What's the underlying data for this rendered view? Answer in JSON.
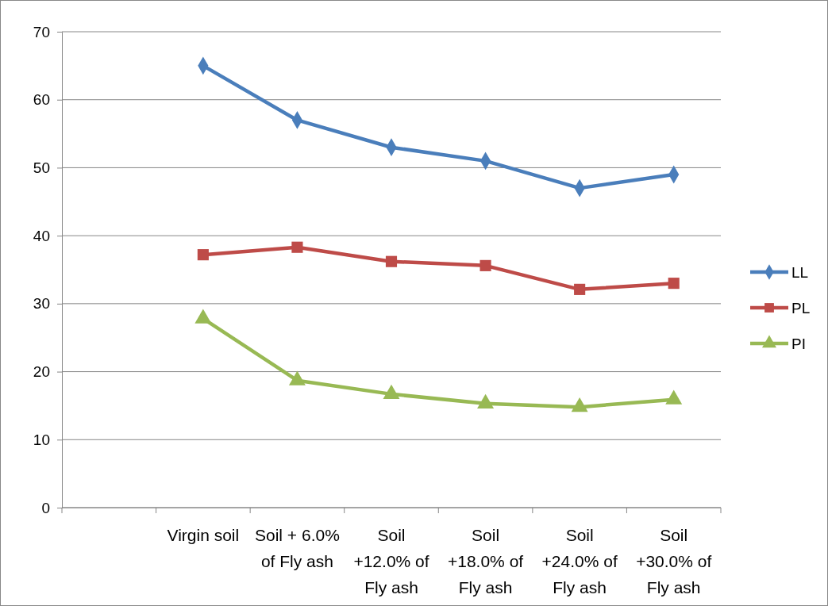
{
  "chart_data": {
    "type": "line",
    "categories": [
      null,
      "Virgin soil",
      "Soil + 6.0% of Fly ash",
      "Soil +12.0% of Fly ash",
      "Soil +18.0% of Fly ash",
      "Soil +24.0% of Fly ash",
      "Soil +30.0% of Fly ash"
    ],
    "series": [
      {
        "name": "LL",
        "color": "#4a7ebb",
        "marker": "diamond",
        "values": [
          null,
          65,
          57,
          53,
          51,
          47,
          49
        ]
      },
      {
        "name": "PL",
        "color": "#be4b48",
        "marker": "square",
        "values": [
          null,
          37.2,
          38.3,
          36.2,
          35.6,
          32.1,
          33.0
        ]
      },
      {
        "name": "PI",
        "color": "#98b954",
        "marker": "triangle",
        "values": [
          null,
          27.8,
          18.7,
          16.7,
          15.3,
          14.8,
          15.9
        ]
      }
    ],
    "ylim": [
      0,
      70
    ],
    "yticks": [
      0,
      10,
      20,
      30,
      40,
      50,
      60,
      70
    ],
    "grid": "y",
    "legend": "right",
    "line_style": "solid"
  }
}
